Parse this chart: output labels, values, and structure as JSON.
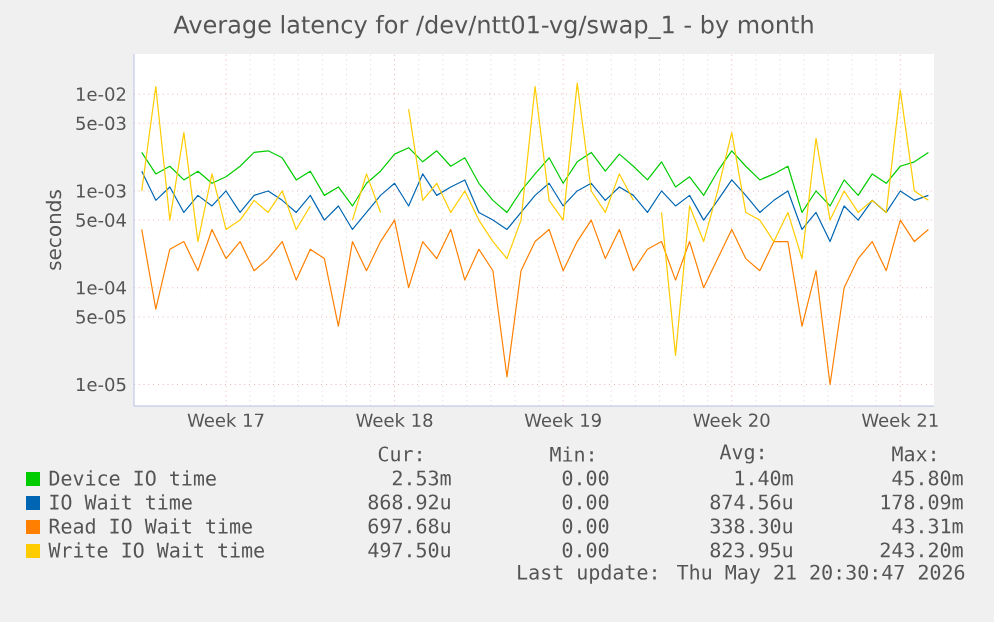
{
  "chart_data": {
    "type": "line",
    "title": "Average latency for /dev/ntt01-vg/swap_1 - by month",
    "ylabel": "seconds",
    "log": "y",
    "grid": true,
    "legend": "bottom",
    "ylim": [
      6e-06,
      0.026
    ],
    "yticks": [
      {
        "value": 1e-05,
        "label": "1e-05"
      },
      {
        "value": 5e-05,
        "label": "5e-05"
      },
      {
        "value": 0.0001,
        "label": "1e-04"
      },
      {
        "value": 0.0005,
        "label": "5e-04"
      },
      {
        "value": 0.001,
        "label": "1e-03"
      },
      {
        "value": 0.005,
        "label": "5e-03"
      },
      {
        "value": 0.01,
        "label": "1e-02"
      }
    ],
    "categories": [
      null,
      null,
      null,
      null,
      null,
      null,
      "Week 17",
      null,
      null,
      null,
      null,
      null,
      null,
      null,
      null,
      null,
      null,
      null,
      "Week 18",
      null,
      null,
      null,
      null,
      null,
      null,
      null,
      null,
      null,
      null,
      null,
      "Week 19",
      null,
      null,
      null,
      null,
      null,
      null,
      null,
      null,
      null,
      null,
      null,
      "Week 20",
      null,
      null,
      null,
      null,
      null,
      null,
      null,
      null,
      null,
      null,
      null,
      "Week 21",
      null,
      null
    ],
    "series": [
      {
        "name": "Device IO time",
        "color": "#00cc00",
        "values": [
          0.0025,
          0.0015,
          0.0018,
          0.0013,
          0.0016,
          0.0012,
          0.0014,
          0.0018,
          0.0025,
          0.0026,
          0.0022,
          0.0013,
          0.0016,
          0.0009,
          0.0011,
          0.0007,
          0.0012,
          0.0016,
          0.0024,
          0.0028,
          0.002,
          0.0026,
          0.0018,
          0.0022,
          0.0012,
          0.0008,
          0.0006,
          0.001,
          0.0015,
          0.0022,
          0.0012,
          0.002,
          0.0025,
          0.0016,
          0.0024,
          0.0018,
          0.0013,
          0.002,
          0.0011,
          0.0014,
          0.0009,
          0.0016,
          0.0026,
          0.0018,
          0.0013,
          0.0015,
          0.0018,
          0.0006,
          0.001,
          0.0007,
          0.0013,
          0.0009,
          0.0015,
          0.0012,
          0.0018,
          0.002,
          0.0025
        ]
      },
      {
        "name": "IO Wait time",
        "color": "#0066b3",
        "values": [
          0.0016,
          0.0008,
          0.0011,
          0.0006,
          0.0009,
          0.0007,
          0.001,
          0.0006,
          0.0009,
          0.001,
          0.0008,
          0.0006,
          0.0009,
          0.0005,
          0.0007,
          0.0004,
          0.0006,
          0.0009,
          0.0012,
          0.0007,
          0.0015,
          0.0009,
          0.0011,
          0.0013,
          0.0006,
          0.0005,
          0.0004,
          0.0006,
          0.0009,
          0.0012,
          0.0007,
          0.001,
          0.0012,
          0.0008,
          0.0011,
          0.0009,
          0.0006,
          0.001,
          0.0007,
          0.0009,
          0.0005,
          0.0008,
          0.0013,
          0.0009,
          0.0006,
          0.0008,
          0.001,
          0.0004,
          0.0006,
          0.0003,
          0.0007,
          0.0005,
          0.0008,
          0.0006,
          0.001,
          0.0008,
          0.0009
        ]
      },
      {
        "name": "Read IO Wait time",
        "color": "#ff8000",
        "values": [
          0.0004,
          6e-05,
          0.00025,
          0.0003,
          0.00015,
          0.0004,
          0.0002,
          0.0003,
          0.00015,
          0.0002,
          0.0003,
          0.00012,
          0.00025,
          0.0002,
          4e-05,
          0.0003,
          0.00015,
          0.0003,
          0.0005,
          0.0001,
          0.0003,
          0.0002,
          0.0004,
          0.00012,
          0.00025,
          0.00015,
          1.2e-05,
          0.00015,
          0.0003,
          0.0004,
          0.00015,
          0.0003,
          0.0005,
          0.0002,
          0.0004,
          0.00015,
          0.00025,
          0.0003,
          0.00012,
          0.0003,
          0.0001,
          0.0002,
          0.0004,
          0.0002,
          0.00015,
          0.0003,
          0.0003,
          4e-05,
          0.00015,
          1e-05,
          0.0001,
          0.0002,
          0.0003,
          0.00015,
          0.0005,
          0.0003,
          0.0004
        ]
      },
      {
        "name": "Write IO Wait time",
        "color": "#ffcc00",
        "values": [
          0.001,
          0.012,
          0.0005,
          0.004,
          0.0003,
          0.0015,
          0.0004,
          0.0005,
          0.0008,
          0.0006,
          0.001,
          0.0004,
          0.0007,
          null,
          null,
          0.0005,
          0.0015,
          0.0006,
          null,
          0.007,
          0.0008,
          0.0012,
          0.0006,
          0.001,
          0.0005,
          0.0003,
          0.0002,
          0.0005,
          0.012,
          0.0008,
          0.0005,
          0.013,
          0.001,
          0.0006,
          0.0015,
          0.0008,
          null,
          0.0006,
          2e-05,
          0.0007,
          0.0003,
          0.001,
          0.004,
          0.0006,
          0.0005,
          0.0003,
          0.0006,
          0.0002,
          0.0035,
          0.0005,
          0.001,
          0.0006,
          0.0008,
          0.0006,
          0.011,
          0.001,
          0.0008
        ]
      }
    ],
    "annotations": [
      "Cur:",
      "Min:",
      "Avg:",
      "Max:",
      "2.53m",
      "0.00",
      "1.40m",
      "45.80m",
      "868.92u",
      "0.00",
      "874.56u",
      "178.09m",
      "697.68u",
      "0.00",
      "338.30u",
      "43.31m",
      "497.50u",
      "0.00",
      "823.95u",
      "243.20m",
      "Last update: Thu May 21 20:30:47 2026"
    ]
  }
}
